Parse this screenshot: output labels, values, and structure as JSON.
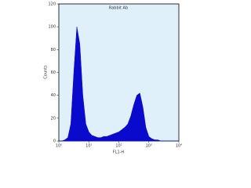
{
  "chart_data": {
    "type": "area",
    "title": "Rabbit Ab",
    "x_label": "FL1-H",
    "y_label": "Counts",
    "x": [
      1,
      1.26,
      1.58,
      2,
      2.51,
      3.16,
      3.98,
      5.01,
      6.31,
      7.94,
      10,
      12.6,
      15.8,
      20,
      25.1,
      31.6,
      39.8,
      50.1,
      63.1,
      79.4,
      100,
      126,
      158,
      200,
      251,
      316,
      398,
      501,
      631,
      794,
      1000,
      1259,
      1585,
      1995,
      2512,
      3162,
      3981,
      5012,
      6310,
      7943,
      10000
    ],
    "values": [
      0,
      0,
      1,
      3,
      15,
      60,
      100,
      85,
      40,
      15,
      8,
      5,
      4,
      3,
      3,
      4,
      4,
      5,
      6,
      7,
      8,
      10,
      12,
      15,
      22,
      32,
      40,
      42,
      30,
      12,
      4,
      2,
      1,
      1,
      0,
      0,
      0,
      0,
      0,
      0,
      0
    ],
    "color": "#0a0acc",
    "background": "#dff0fb",
    "xlog": true,
    "xlim": [
      1,
      10000
    ],
    "xticks": [
      {
        "value": 1,
        "label": "10⁰"
      },
      {
        "value": 10,
        "label": "10¹"
      },
      {
        "value": 100,
        "label": "10²"
      },
      {
        "value": 1000,
        "label": "10³"
      },
      {
        "value": 10000,
        "label": "10⁴"
      }
    ],
    "ylim": [
      0,
      120
    ],
    "yticks": [
      0,
      20,
      40,
      60,
      80,
      100,
      120
    ]
  }
}
